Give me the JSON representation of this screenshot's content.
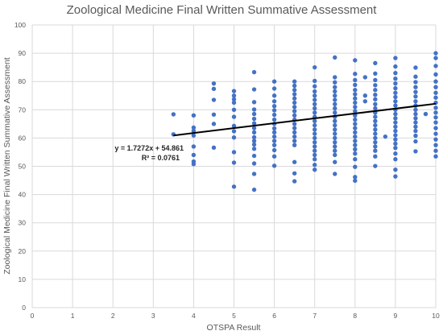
{
  "chart_data": {
    "type": "scatter",
    "title": "Zoological Medicine Final Written Summative Assessment",
    "xlabel": "OTSPA Result",
    "ylabel": "Zoological Medicine Final Written Summative Assessment",
    "xlim": [
      0,
      10
    ],
    "ylim": [
      0,
      100
    ],
    "x_ticks": [
      0,
      1,
      2,
      3,
      4,
      5,
      6,
      7,
      8,
      9,
      10
    ],
    "y_ticks": [
      0,
      10,
      20,
      30,
      40,
      50,
      60,
      70,
      80,
      90,
      100
    ],
    "grid": true,
    "point_color": "#4472c4",
    "trendline": {
      "slope": 1.7272,
      "intercept": 54.861,
      "x_range": [
        3.5,
        10
      ],
      "color": "#000000",
      "equation_label": "y = 1.7272x + 54.861",
      "r2_label": "R² = 0.0761"
    },
    "series": [
      {
        "points": [
          [
            3.5,
            68.4
          ],
          [
            3.5,
            61.3
          ],
          [
            4,
            68
          ],
          [
            4,
            63.7
          ],
          [
            4,
            62.5
          ],
          [
            4,
            60.9
          ],
          [
            4,
            57
          ],
          [
            4,
            54
          ],
          [
            4,
            51.7
          ],
          [
            4,
            50.8
          ],
          [
            4.5,
            79.3
          ],
          [
            4.5,
            77.4
          ],
          [
            4.5,
            73.5
          ],
          [
            4.5,
            68.3
          ],
          [
            4.5,
            65
          ],
          [
            4.5,
            56.6
          ],
          [
            5,
            76.6
          ],
          [
            5,
            75
          ],
          [
            5,
            73.7
          ],
          [
            5,
            72.5
          ],
          [
            5,
            70
          ],
          [
            5,
            67.5
          ],
          [
            5,
            64.3
          ],
          [
            5,
            62.4
          ],
          [
            5,
            60.2
          ],
          [
            5,
            55
          ],
          [
            5,
            51.3
          ],
          [
            5,
            42.8
          ],
          [
            5.5,
            83.3
          ],
          [
            5.5,
            77.2
          ],
          [
            5.5,
            72.7
          ],
          [
            5.5,
            70.1
          ],
          [
            5.5,
            68.5
          ],
          [
            5.5,
            66.8
          ],
          [
            5.5,
            65.2
          ],
          [
            5.5,
            63.5
          ],
          [
            5.5,
            62
          ],
          [
            5.5,
            60.3
          ],
          [
            5.5,
            59
          ],
          [
            5.5,
            57.7
          ],
          [
            5.5,
            56.2
          ],
          [
            5.5,
            53.7
          ],
          [
            5.5,
            51
          ],
          [
            5.5,
            47.3
          ],
          [
            5.5,
            41.7
          ],
          [
            6,
            80
          ],
          [
            6,
            77.5
          ],
          [
            6,
            75
          ],
          [
            6,
            73
          ],
          [
            6,
            71.3
          ],
          [
            6,
            69.8
          ],
          [
            6,
            68.2
          ],
          [
            6,
            66.5
          ],
          [
            6,
            65
          ],
          [
            6,
            63.4
          ],
          [
            6,
            62
          ],
          [
            6,
            60.5
          ],
          [
            6,
            59
          ],
          [
            6,
            57.5
          ],
          [
            6,
            55.7
          ],
          [
            6,
            53.5
          ],
          [
            6,
            50.2
          ],
          [
            6.5,
            80
          ],
          [
            6.5,
            78.5
          ],
          [
            6.5,
            77
          ],
          [
            6.5,
            75.5
          ],
          [
            6.5,
            74
          ],
          [
            6.5,
            72.5
          ],
          [
            6.5,
            71
          ],
          [
            6.5,
            69.5
          ],
          [
            6.5,
            68
          ],
          [
            6.5,
            66.5
          ],
          [
            6.5,
            65
          ],
          [
            6.5,
            63.5
          ],
          [
            6.5,
            62
          ],
          [
            6.5,
            60.5
          ],
          [
            6.5,
            59
          ],
          [
            6.5,
            57.5
          ],
          [
            6.5,
            51.5
          ],
          [
            6.5,
            47.5
          ],
          [
            6.5,
            44.7
          ],
          [
            7,
            85
          ],
          [
            7,
            80.2
          ],
          [
            7,
            78.3
          ],
          [
            7,
            76.5
          ],
          [
            7,
            75
          ],
          [
            7,
            73.5
          ],
          [
            7,
            72
          ],
          [
            7,
            70.5
          ],
          [
            7,
            69
          ],
          [
            7,
            67.5
          ],
          [
            7,
            66
          ],
          [
            7,
            64.5
          ],
          [
            7,
            63
          ],
          [
            7,
            61.5
          ],
          [
            7,
            60
          ],
          [
            7,
            58.5
          ],
          [
            7,
            57
          ],
          [
            7,
            55.5
          ],
          [
            7,
            54
          ],
          [
            7,
            52.5
          ],
          [
            7,
            50.5
          ],
          [
            7,
            48.8
          ],
          [
            7.5,
            88.5
          ],
          [
            7.5,
            81.5
          ],
          [
            7.5,
            79.7
          ],
          [
            7.5,
            78
          ],
          [
            7.5,
            76.5
          ],
          [
            7.5,
            75
          ],
          [
            7.5,
            73.5
          ],
          [
            7.5,
            72
          ],
          [
            7.5,
            70.5
          ],
          [
            7.5,
            69
          ],
          [
            7.5,
            67.5
          ],
          [
            7.5,
            66
          ],
          [
            7.5,
            64.5
          ],
          [
            7.5,
            63
          ],
          [
            7.5,
            61.5
          ],
          [
            7.5,
            60
          ],
          [
            7.5,
            58.5
          ],
          [
            7.5,
            57
          ],
          [
            7.5,
            55.5
          ],
          [
            7.5,
            54
          ],
          [
            7.5,
            51.5
          ],
          [
            7.5,
            47.3
          ],
          [
            8,
            87.5
          ],
          [
            8,
            82.7
          ],
          [
            8,
            80.5
          ],
          [
            8,
            78.8
          ],
          [
            8,
            77
          ],
          [
            8,
            75.5
          ],
          [
            8,
            74
          ],
          [
            8,
            72.5
          ],
          [
            8,
            71
          ],
          [
            8,
            69.5
          ],
          [
            8,
            68
          ],
          [
            8,
            66.5
          ],
          [
            8,
            65
          ],
          [
            8,
            63.5
          ],
          [
            8,
            62
          ],
          [
            8,
            60.5
          ],
          [
            8,
            59
          ],
          [
            8,
            57.5
          ],
          [
            8,
            56
          ],
          [
            8,
            54.5
          ],
          [
            8,
            52.5
          ],
          [
            8,
            49.8
          ],
          [
            8,
            46.2
          ],
          [
            8,
            44.9
          ],
          [
            8.25,
            81.5
          ],
          [
            8.25,
            75
          ],
          [
            8.25,
            73
          ],
          [
            8.5,
            86.5
          ],
          [
            8.5,
            82.8
          ],
          [
            8.5,
            80.5
          ],
          [
            8.5,
            78.7
          ],
          [
            8.5,
            77
          ],
          [
            8.5,
            75.3
          ],
          [
            8.5,
            73.7
          ],
          [
            8.5,
            72
          ],
          [
            8.5,
            70.5
          ],
          [
            8.5,
            69
          ],
          [
            8.5,
            67.5
          ],
          [
            8.5,
            66
          ],
          [
            8.5,
            64.5
          ],
          [
            8.5,
            63
          ],
          [
            8.5,
            61.5
          ],
          [
            8.5,
            60
          ],
          [
            8.5,
            58.5
          ],
          [
            8.5,
            57
          ],
          [
            8.5,
            55.5
          ],
          [
            8.5,
            53.5
          ],
          [
            8.5,
            50.1
          ],
          [
            8.75,
            60.5
          ],
          [
            9,
            88.3
          ],
          [
            9,
            85.3
          ],
          [
            9,
            83
          ],
          [
            9,
            81
          ],
          [
            9,
            79.3
          ],
          [
            9,
            77.6
          ],
          [
            9,
            76
          ],
          [
            9,
            74.5
          ],
          [
            9,
            73
          ],
          [
            9,
            71.5
          ],
          [
            9,
            70
          ],
          [
            9,
            68.5
          ],
          [
            9,
            67
          ],
          [
            9,
            65.5
          ],
          [
            9,
            64
          ],
          [
            9,
            62.5
          ],
          [
            9,
            61
          ],
          [
            9,
            59.5
          ],
          [
            9,
            58
          ],
          [
            9,
            56.5
          ],
          [
            9,
            54.5
          ],
          [
            9,
            52.5
          ],
          [
            9,
            48.8
          ],
          [
            9,
            46.4
          ],
          [
            9.5,
            84.9
          ],
          [
            9.5,
            81.7
          ],
          [
            9.5,
            79.8
          ],
          [
            9.5,
            78
          ],
          [
            9.5,
            76.3
          ],
          [
            9.5,
            74.7
          ],
          [
            9.5,
            73
          ],
          [
            9.5,
            71.5
          ],
          [
            9.5,
            70
          ],
          [
            9.5,
            68.5
          ],
          [
            9.5,
            67
          ],
          [
            9.5,
            65.5
          ],
          [
            9.5,
            64
          ],
          [
            9.5,
            62.5
          ],
          [
            9.5,
            60.8
          ],
          [
            9.5,
            58.8
          ],
          [
            9.5,
            55.3
          ],
          [
            9.75,
            68.5
          ],
          [
            10,
            90
          ],
          [
            10,
            88.3
          ],
          [
            10,
            85.5
          ],
          [
            10,
            82.5
          ],
          [
            10,
            80
          ],
          [
            10,
            78
          ],
          [
            10,
            76
          ],
          [
            10,
            74.3
          ],
          [
            10,
            72.5
          ],
          [
            10,
            70.7
          ],
          [
            10,
            69
          ],
          [
            10,
            67.3
          ],
          [
            10,
            65.5
          ],
          [
            10,
            63.5
          ],
          [
            10,
            61.5
          ],
          [
            10,
            59.5
          ],
          [
            10,
            57.5
          ],
          [
            10,
            55.5
          ],
          [
            10,
            53.5
          ]
        ]
      }
    ]
  }
}
